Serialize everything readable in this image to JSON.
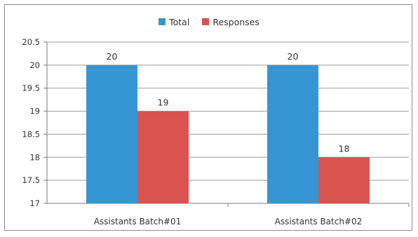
{
  "chart_data": {
    "type": "bar",
    "categories": [
      "Assistants Batch#01",
      "Assistants Batch#02"
    ],
    "series": [
      {
        "name": "Total",
        "values": [
          20,
          20
        ],
        "color": "#3596d3"
      },
      {
        "name": "Responses",
        "values": [
          19,
          18
        ],
        "color": "#d9534f"
      }
    ],
    "ylim": [
      17,
      20.5
    ],
    "yticks": [
      "17",
      "17.5",
      "18",
      "18.5",
      "19",
      "19.5",
      "20",
      "20.5"
    ],
    "data_labels": [
      [
        "20",
        "20"
      ],
      [
        "19",
        "18"
      ]
    ],
    "legend_position": "top",
    "grid": true
  }
}
